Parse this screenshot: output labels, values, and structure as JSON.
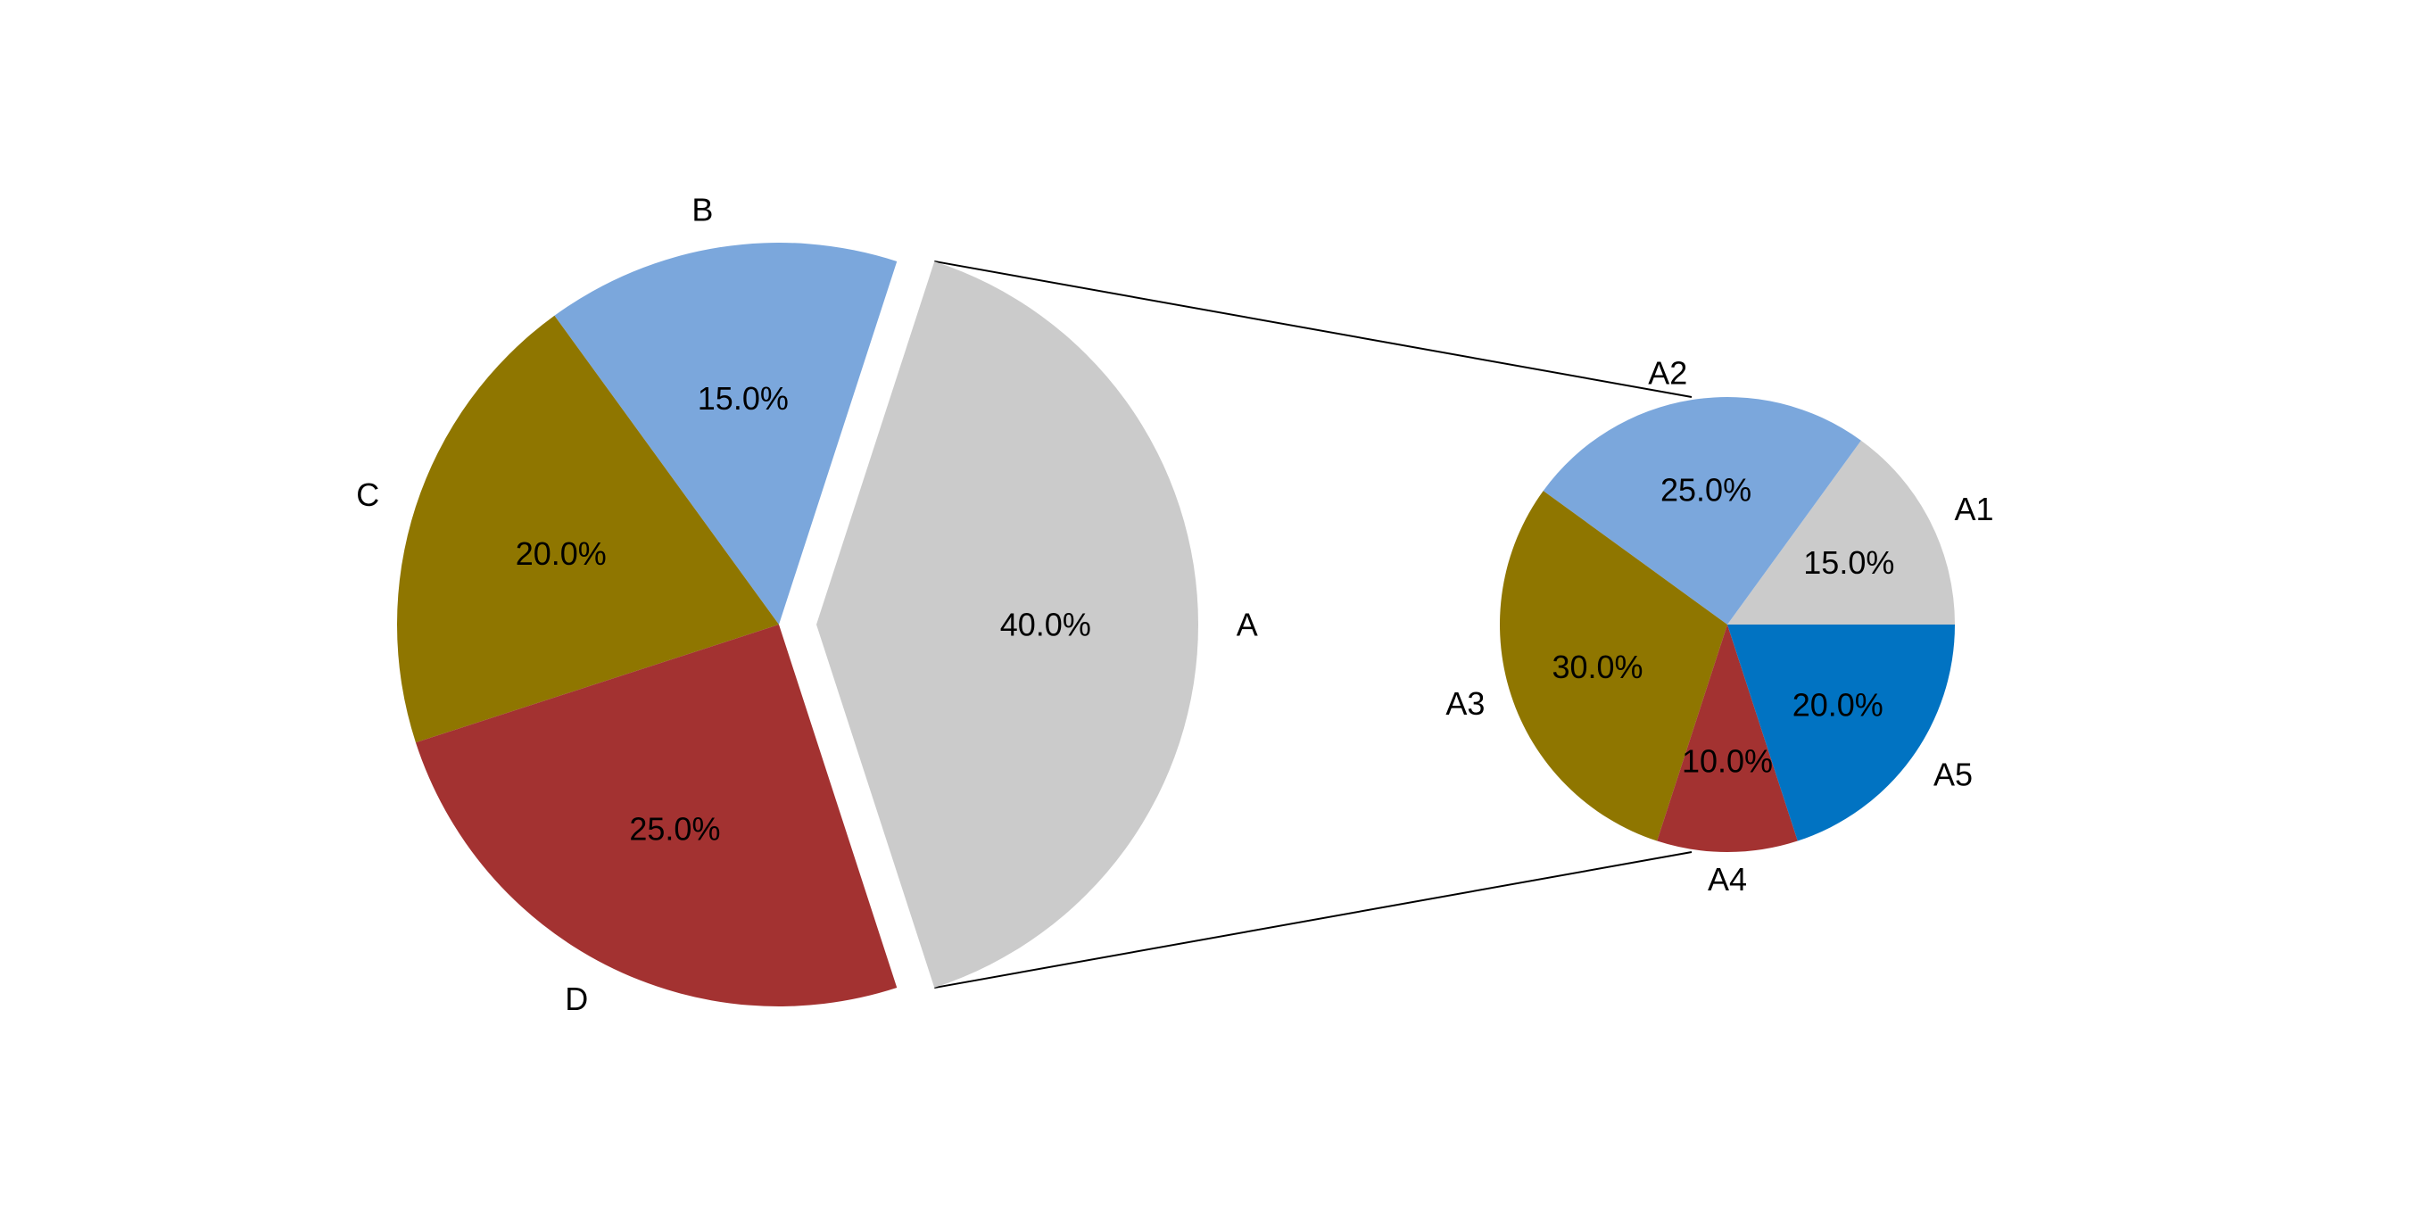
{
  "chart_data": [
    {
      "type": "pie",
      "role": "main",
      "categories": [
        "A",
        "B",
        "C",
        "D"
      ],
      "values": [
        40.0,
        15.0,
        20.0,
        25.0
      ],
      "percent_labels": [
        "40.0%",
        "15.0%",
        "20.0%",
        "25.0%"
      ],
      "colors": [
        "#cbcbcb",
        "#7ba7dc",
        "#8f7600",
        "#a33231"
      ],
      "exploded": [
        "A"
      ],
      "start_angle_deg": -72,
      "direction": "counterclockwise"
    },
    {
      "type": "pie",
      "role": "breakdown",
      "of_category": "A",
      "categories": [
        "A1",
        "A2",
        "A3",
        "A4",
        "A5"
      ],
      "values": [
        15.0,
        25.0,
        30.0,
        10.0,
        20.0
      ],
      "percent_labels": [
        "15.0%",
        "25.0%",
        "30.0%",
        "10.0%",
        "20.0%"
      ],
      "colors": [
        "#cbcbcb",
        "#7ba7dc",
        "#8f7600",
        "#a33231",
        "#0173c2"
      ],
      "start_angle_deg": 0,
      "direction": "counterclockwise"
    }
  ],
  "connector_color": "#000000"
}
